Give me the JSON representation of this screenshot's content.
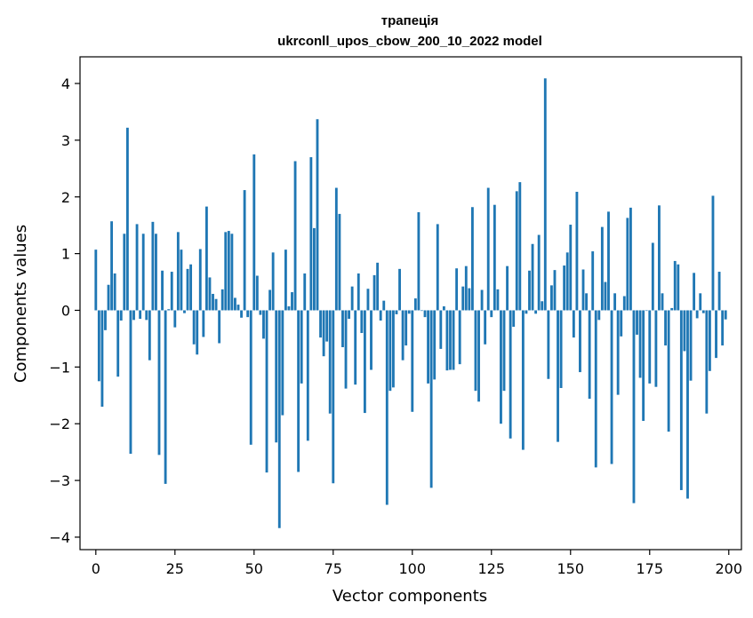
{
  "chart_data": {
    "type": "bar",
    "title": "трапеція",
    "subtitle": "ukrconll_upos_cbow_200_10_2022 model",
    "xlabel": "Vector components",
    "ylabel": "Components values",
    "xlim": [
      -5,
      204
    ],
    "ylim": [
      -4.22,
      4.47
    ],
    "x_ticks": [
      0,
      25,
      50,
      75,
      100,
      125,
      150,
      175,
      200
    ],
    "x_tick_labels": [
      "0",
      "25",
      "50",
      "75",
      "100",
      "125",
      "150",
      "175",
      "200"
    ],
    "y_ticks": [
      -4,
      -3,
      -2,
      -1,
      0,
      1,
      2,
      3,
      4
    ],
    "y_tick_labels": [
      "−4",
      "−3",
      "−2",
      "−1",
      "0",
      "1",
      "2",
      "3",
      "4"
    ],
    "grid": false,
    "bar_color": "#1f77b4",
    "x": [
      0,
      1,
      2,
      3,
      4,
      5,
      6,
      7,
      8,
      9,
      10,
      11,
      12,
      13,
      14,
      15,
      16,
      17,
      18,
      19,
      20,
      21,
      22,
      23,
      24,
      25,
      26,
      27,
      28,
      29,
      30,
      31,
      32,
      33,
      34,
      35,
      36,
      37,
      38,
      39,
      40,
      41,
      42,
      43,
      44,
      45,
      46,
      47,
      48,
      49,
      50,
      51,
      52,
      53,
      54,
      55,
      56,
      57,
      58,
      59,
      60,
      61,
      62,
      63,
      64,
      65,
      66,
      67,
      68,
      69,
      70,
      71,
      72,
      73,
      74,
      75,
      76,
      77,
      78,
      79,
      80,
      81,
      82,
      83,
      84,
      85,
      86,
      87,
      88,
      89,
      90,
      91,
      92,
      93,
      94,
      95,
      96,
      97,
      98,
      99,
      100,
      101,
      102,
      103,
      104,
      105,
      106,
      107,
      108,
      109,
      110,
      111,
      112,
      113,
      114,
      115,
      116,
      117,
      118,
      119,
      120,
      121,
      122,
      123,
      124,
      125,
      126,
      127,
      128,
      129,
      130,
      131,
      132,
      133,
      134,
      135,
      136,
      137,
      138,
      139,
      140,
      141,
      142,
      143,
      144,
      145,
      146,
      147,
      148,
      149,
      150,
      151,
      152,
      153,
      154,
      155,
      156,
      157,
      158,
      159,
      160,
      161,
      162,
      163,
      164,
      165,
      166,
      167,
      168,
      169,
      170,
      171,
      172,
      173,
      174,
      175,
      176,
      177,
      178,
      179,
      180,
      181,
      182,
      183,
      184,
      185,
      186,
      187,
      188,
      189,
      190,
      191,
      192,
      193,
      194,
      195,
      196,
      197,
      198,
      199
    ],
    "values": [
      1.07,
      -1.25,
      -1.7,
      -0.35,
      0.45,
      1.57,
      0.65,
      -1.17,
      -0.18,
      1.35,
      3.22,
      -2.53,
      -0.17,
      1.52,
      -0.15,
      1.35,
      -0.17,
      -0.88,
      1.56,
      1.35,
      -2.55,
      0.7,
      -3.06,
      0.02,
      0.68,
      -0.3,
      1.38,
      1.07,
      -0.05,
      0.73,
      0.81,
      -0.6,
      -0.78,
      1.08,
      -0.47,
      1.83,
      0.58,
      0.29,
      0.2,
      -0.58,
      0.37,
      1.38,
      1.4,
      1.35,
      0.22,
      0.1,
      -0.13,
      2.12,
      -0.12,
      -2.37,
      2.75,
      0.61,
      -0.08,
      -0.5,
      -2.86,
      0.36,
      1.02,
      -2.33,
      -3.84,
      -1.85,
      1.07,
      0.07,
      0.32,
      2.63,
      -2.85,
      -1.29,
      0.65,
      -2.3,
      2.7,
      1.45,
      3.37,
      -0.48,
      -0.81,
      -0.55,
      -1.82,
      -3.05,
      2.16,
      1.7,
      -0.65,
      -1.38,
      -0.15,
      0.42,
      -1.31,
      0.65,
      -0.4,
      -1.81,
      0.38,
      -1.05,
      0.62,
      0.84,
      -0.18,
      0.17,
      -3.43,
      -1.42,
      -1.36,
      -0.07,
      0.73,
      -0.88,
      -0.62,
      -0.06,
      -1.79,
      0.21,
      1.73,
      -0.01,
      -0.12,
      -1.29,
      -3.13,
      -1.22,
      1.52,
      -0.68,
      0.07,
      -1.06,
      -1.05,
      -1.05,
      0.74,
      -0.95,
      0.42,
      0.78,
      0.39,
      1.82,
      -1.42,
      -1.61,
      0.36,
      -0.6,
      2.16,
      -0.12,
      1.86,
      0.37,
      -2.0,
      -1.42,
      0.78,
      -2.26,
      -0.29,
      2.1,
      2.26,
      -2.46,
      -0.06,
      0.7,
      1.17,
      -0.06,
      1.33,
      0.16,
      4.09,
      -1.21,
      0.44,
      0.71,
      -2.32,
      -1.37,
      0.79,
      1.02,
      1.51,
      -0.48,
      2.09,
      -1.09,
      0.72,
      0.3,
      -1.56,
      1.04,
      -2.77,
      -0.17,
      1.47,
      0.5,
      1.74,
      -2.71,
      0.3,
      -1.49,
      -0.46,
      0.25,
      1.63,
      1.81,
      -3.4,
      -0.43,
      -1.19,
      -1.95,
      -0.01,
      -1.29,
      1.19,
      -1.35,
      1.85,
      0.3,
      -0.62,
      -2.14,
      0.04,
      0.87,
      0.81,
      -3.17,
      -0.72,
      -3.32,
      -1.24,
      0.66,
      -0.14,
      0.3,
      -0.05,
      -1.82,
      -1.07,
      2.02,
      -0.84,
      0.68,
      -0.62,
      -0.16
    ]
  }
}
